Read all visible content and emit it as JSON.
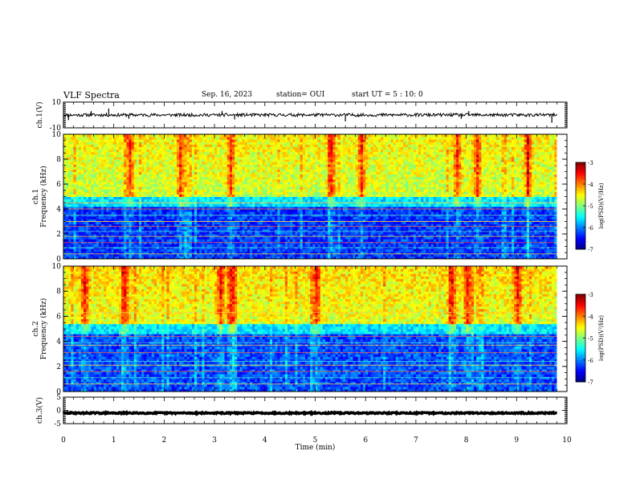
{
  "header": {
    "title": "VLF Spectra",
    "date": "Sep. 16, 2023",
    "station": "station= OUI",
    "start": "start  UT =  5 : 10: 0"
  },
  "chart_data": [
    {
      "type": "line",
      "name": "ch1-waveform",
      "ylabel": "ch.1(V)",
      "ylim": [
        -10,
        10
      ],
      "yticks": [
        "10",
        "-10"
      ],
      "xlim": [
        0,
        10
      ],
      "data_end_min": 9.8,
      "baseline": 0,
      "noise_amplitude": 1.2,
      "spikes": [
        {
          "t": 0.1,
          "v": -4
        },
        {
          "t": 0.55,
          "v": 3
        },
        {
          "t": 0.9,
          "v": 5
        },
        {
          "t": 1.3,
          "v": -3
        },
        {
          "t": 3.15,
          "v": 3
        },
        {
          "t": 3.4,
          "v": -3.5
        },
        {
          "t": 5.6,
          "v": -5
        },
        {
          "t": 7.9,
          "v": -3
        },
        {
          "t": 8.05,
          "v": 3
        },
        {
          "t": 9.7,
          "v": -6
        }
      ]
    },
    {
      "type": "heatmap",
      "name": "ch1-spectrogram",
      "ylabel": "ch.1\nFrequency (kHz)",
      "ylim": [
        0,
        10
      ],
      "yticks": [
        "0",
        "2",
        "4",
        "6",
        "8",
        "10"
      ],
      "xlim": [
        0,
        10
      ],
      "data_end_min": 9.8,
      "value_range": [
        -7,
        -3
      ],
      "noise_floor_khz": 5,
      "high_band_level": -4.6,
      "low_band_level": -6.3,
      "seed": 7,
      "tones_khz": [
        0.4,
        0.9,
        1.3,
        1.8,
        2.2,
        2.6,
        3.0,
        3.5,
        4.0,
        4.5
      ],
      "bursts_min": [
        1.3,
        2.3,
        3.3,
        5.3,
        5.9,
        7.8,
        8.2,
        9.2
      ],
      "colorbar": {
        "label": "log(PSD)(V²/Hz)",
        "ticks": [
          "-3",
          "-4",
          "-5",
          "-6",
          "-7"
        ]
      }
    },
    {
      "type": "heatmap",
      "name": "ch2-spectrogram",
      "ylabel": "ch.2\nFrequency (kHz)",
      "ylim": [
        0,
        10
      ],
      "yticks": [
        "0",
        "2",
        "4",
        "6",
        "8",
        "10"
      ],
      "xlim": [
        0,
        10
      ],
      "data_end_min": 9.8,
      "value_range": [
        -7,
        -3
      ],
      "noise_floor_khz": 5.3,
      "high_band_level": -4.5,
      "low_band_level": -6.2,
      "seed": 13,
      "tones_khz": [
        0.6,
        1.1,
        1.6,
        2.1,
        2.4,
        3.1,
        3.7,
        3.9,
        4.4,
        6.3
      ],
      "bursts_min": [
        0.4,
        1.2,
        3.1,
        3.3,
        5.0,
        7.7,
        8.0,
        9.0
      ],
      "colorbar": {
        "label": "log(PSD)(V²/Hz)",
        "ticks": [
          "-3",
          "-4",
          "-5",
          "-6",
          "-7"
        ]
      }
    },
    {
      "type": "line",
      "name": "ch3-waveform",
      "ylabel": "ch.3(V)",
      "ylim": [
        -5,
        5
      ],
      "yticks": [
        "5",
        "0",
        "-5"
      ],
      "xlim": [
        0,
        10
      ],
      "data_end_min": 9.8,
      "baseline": -1,
      "noise_amplitude": 0.25
    }
  ],
  "xaxis": {
    "label": "Time (min)",
    "ticks": [
      "0",
      "1",
      "2",
      "3",
      "4",
      "5",
      "6",
      "7",
      "8",
      "9",
      "10"
    ]
  }
}
